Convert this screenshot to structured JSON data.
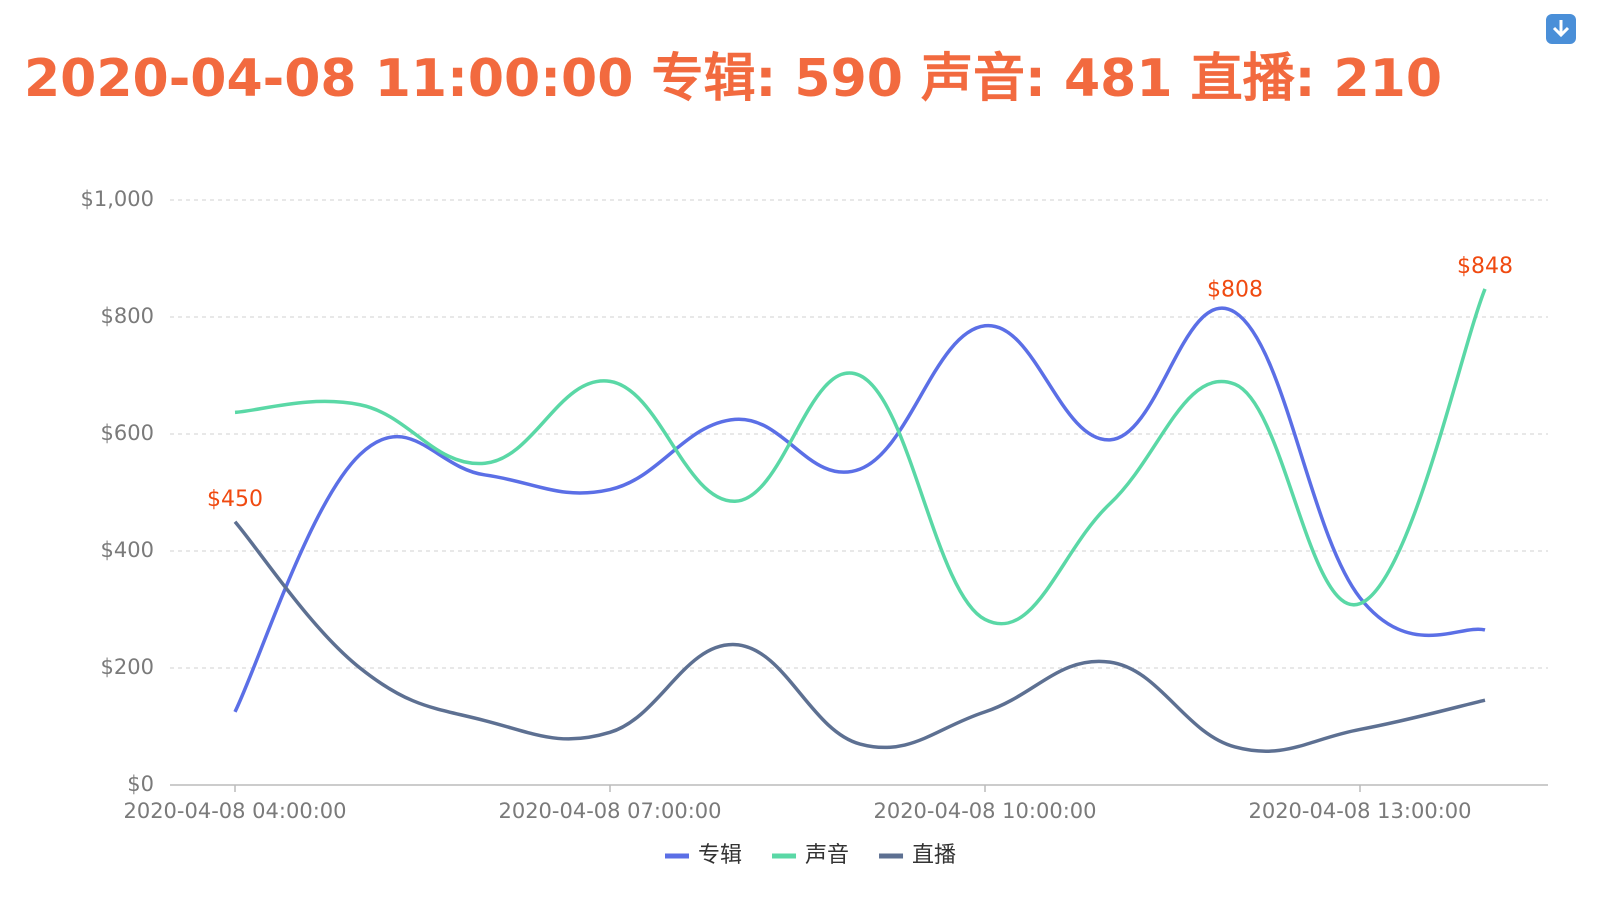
{
  "chart_data": {
    "type": "line",
    "smooth": true,
    "title": "2020-04-08 11:00:00 专辑: 590 声音: 481 直播: 210",
    "categories": [
      "2020-04-08 04:00:00",
      null,
      null,
      "2020-04-08 07:00:00",
      null,
      null,
      "2020-04-08 10:00:00",
      null,
      null,
      "2020-04-08 13:00:00",
      null
    ],
    "series": [
      {
        "name": "专辑",
        "color": "#5b6fe6",
        "values": [
          125,
          565,
          530,
          505,
          625,
          540,
          785,
          590,
          808,
          320,
          265
        ],
        "value_labels": [
          null,
          null,
          null,
          null,
          null,
          null,
          null,
          null,
          "$808",
          null,
          null
        ]
      },
      {
        "name": "声音",
        "color": "#5ad8a6",
        "values": [
          637,
          650,
          550,
          690,
          485,
          700,
          283,
          481,
          685,
          310,
          848
        ],
        "value_labels": [
          null,
          null,
          null,
          null,
          null,
          null,
          null,
          null,
          null,
          null,
          "$848"
        ]
      },
      {
        "name": "直播",
        "color": "#5d7092",
        "values": [
          450,
          200,
          110,
          90,
          240,
          70,
          125,
          210,
          65,
          95,
          145
        ],
        "value_labels": [
          "$450",
          null,
          null,
          null,
          null,
          null,
          null,
          null,
          null,
          null,
          null
        ]
      }
    ],
    "ylim": [
      0,
      1000
    ],
    "yticks": [
      {
        "value": 0,
        "label": "$0"
      },
      {
        "value": 200,
        "label": "$200"
      },
      {
        "value": 400,
        "label": "$400"
      },
      {
        "value": 600,
        "label": "$600"
      },
      {
        "value": 800,
        "label": "$800"
      },
      {
        "value": 1000,
        "label": "$1,000"
      }
    ],
    "grid": true,
    "legend": "bottom"
  }
}
